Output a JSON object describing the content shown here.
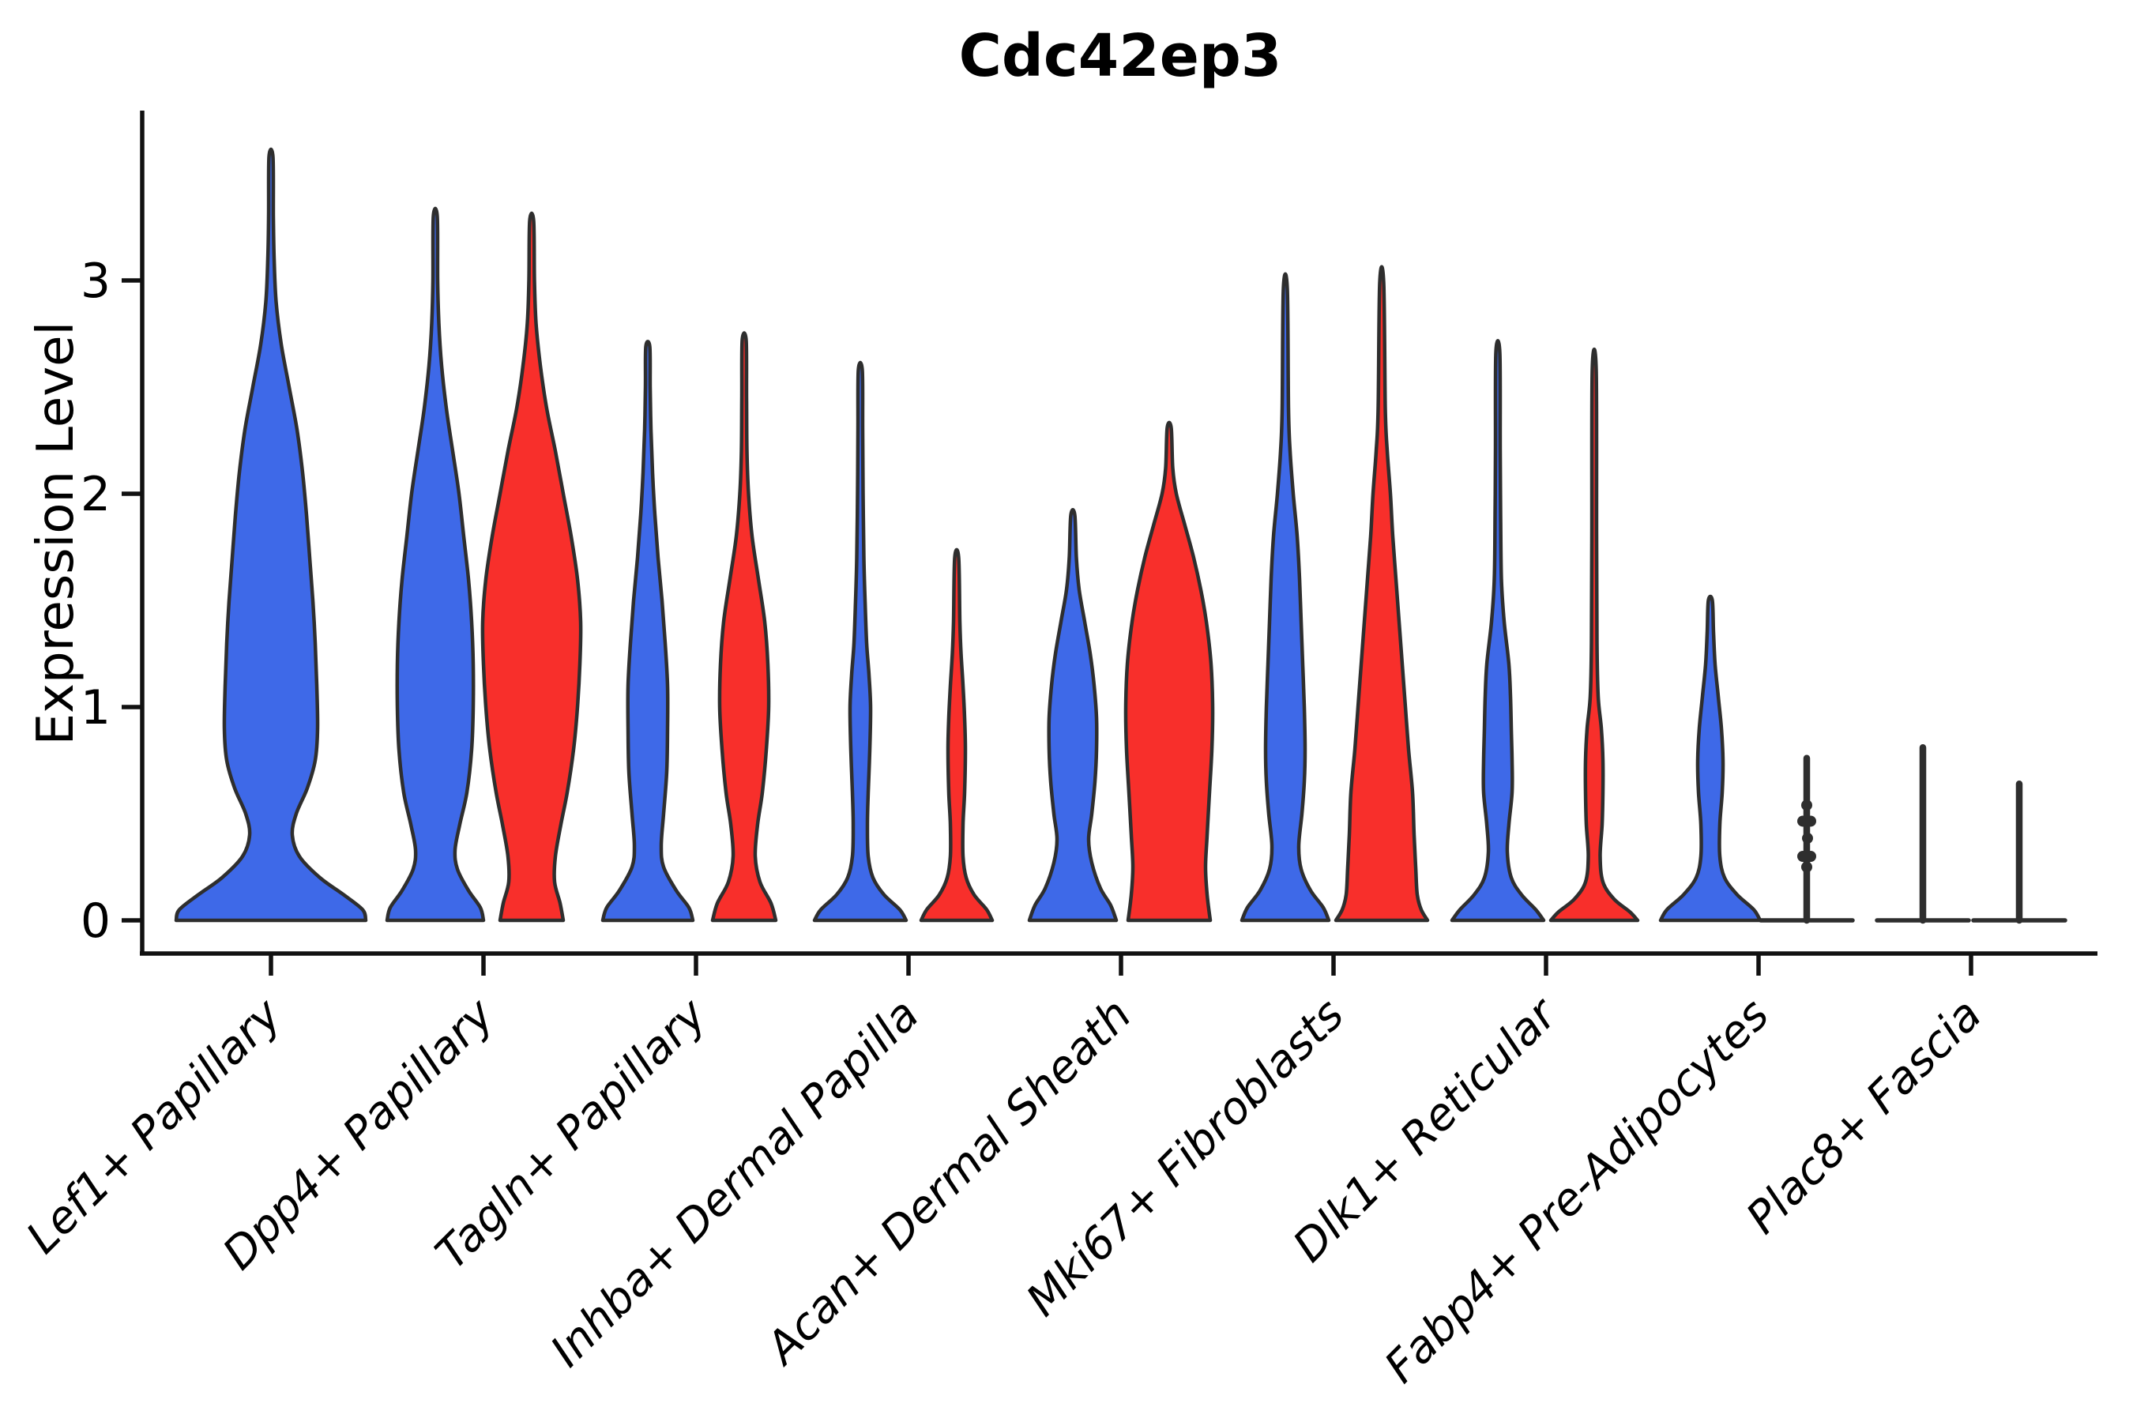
{
  "chart_data": {
    "type": "violin",
    "title": "Cdc42ep3",
    "ylabel": "Expression Level",
    "xlabel": "",
    "yticks": [
      0,
      1,
      2,
      3
    ],
    "ylim": [
      0,
      3.77
    ],
    "grid": false,
    "legend": "none",
    "background": "#ffffff",
    "colors": {
      "blue": "#3E69E8",
      "red": "#F82F2B",
      "outline": "#2E2E2E",
      "axis": "#111111"
    },
    "categories": [
      "Lef1+ Papillary",
      "Dpp4+ Papillary",
      "Tagln+ Papillary",
      "Inhba+ Dermal Papilla",
      "Acan+ Dermal Sheath",
      "Mki67+ Fibroblasts",
      "Dlk1+ Reticular",
      "Fabp4+ Pre-Adipocytes",
      "Plac8+ Fascia"
    ],
    "violins": [
      {
        "category": "Lef1+ Papillary",
        "group": "blue",
        "side": "center",
        "style": "density",
        "max": 3.58,
        "profile": [
          [
            0,
            120
          ],
          [
            0.05,
            116
          ],
          [
            0.12,
            92
          ],
          [
            0.2,
            62
          ],
          [
            0.3,
            36
          ],
          [
            0.4,
            27
          ],
          [
            0.5,
            32
          ],
          [
            0.62,
            46
          ],
          [
            0.75,
            56
          ],
          [
            0.9,
            59
          ],
          [
            1.1,
            58
          ],
          [
            1.3,
            56
          ],
          [
            1.5,
            53
          ],
          [
            1.7,
            49
          ],
          [
            1.9,
            45
          ],
          [
            2.1,
            40
          ],
          [
            2.3,
            33
          ],
          [
            2.5,
            23
          ],
          [
            2.7,
            13
          ],
          [
            2.9,
            6.5
          ],
          [
            3.1,
            4
          ],
          [
            3.3,
            3
          ],
          [
            3.58,
            2.5
          ]
        ]
      },
      {
        "category": "Dpp4+ Papillary",
        "group": "blue",
        "side": "left",
        "style": "density",
        "max": 3.3,
        "profile": [
          [
            0,
            61
          ],
          [
            0.06,
            57
          ],
          [
            0.14,
            42
          ],
          [
            0.24,
            28
          ],
          [
            0.33,
            25
          ],
          [
            0.45,
            31
          ],
          [
            0.6,
            40
          ],
          [
            0.8,
            46
          ],
          [
            1.0,
            48
          ],
          [
            1.2,
            48
          ],
          [
            1.4,
            46
          ],
          [
            1.6,
            42
          ],
          [
            1.8,
            36
          ],
          [
            2.0,
            30
          ],
          [
            2.2,
            22
          ],
          [
            2.4,
            14
          ],
          [
            2.6,
            8
          ],
          [
            2.8,
            4.5
          ],
          [
            3.0,
            3
          ],
          [
            3.3,
            2.5
          ]
        ]
      },
      {
        "category": "Dpp4+ Papillary",
        "group": "red",
        "side": "right",
        "style": "density",
        "max": 3.28,
        "profile": [
          [
            0,
            40
          ],
          [
            0.08,
            36
          ],
          [
            0.18,
            29
          ],
          [
            0.3,
            30
          ],
          [
            0.45,
            37
          ],
          [
            0.6,
            45
          ],
          [
            0.8,
            53
          ],
          [
            1.0,
            58
          ],
          [
            1.2,
            61
          ],
          [
            1.4,
            62
          ],
          [
            1.6,
            58
          ],
          [
            1.8,
            50
          ],
          [
            2.0,
            40
          ],
          [
            2.2,
            30
          ],
          [
            2.4,
            19
          ],
          [
            2.6,
            11
          ],
          [
            2.8,
            5.5
          ],
          [
            3.0,
            3.5
          ],
          [
            3.28,
            2.5
          ]
        ]
      },
      {
        "category": "Tagln+ Papillary",
        "group": "blue",
        "side": "left",
        "style": "density",
        "max": 2.69,
        "profile": [
          [
            0,
            57
          ],
          [
            0.06,
            52
          ],
          [
            0.14,
            36
          ],
          [
            0.25,
            20
          ],
          [
            0.35,
            17
          ],
          [
            0.5,
            20
          ],
          [
            0.7,
            24
          ],
          [
            0.9,
            25
          ],
          [
            1.1,
            25
          ],
          [
            1.3,
            22
          ],
          [
            1.5,
            18
          ],
          [
            1.7,
            13
          ],
          [
            1.9,
            9
          ],
          [
            2.1,
            6
          ],
          [
            2.3,
            4
          ],
          [
            2.5,
            3
          ],
          [
            2.69,
            2.5
          ]
        ]
      },
      {
        "category": "Tagln+ Papillary",
        "group": "red",
        "side": "right",
        "style": "density",
        "max": 2.72,
        "profile": [
          [
            0,
            40
          ],
          [
            0.08,
            34
          ],
          [
            0.18,
            20
          ],
          [
            0.3,
            14
          ],
          [
            0.45,
            17
          ],
          [
            0.6,
            23
          ],
          [
            0.8,
            28
          ],
          [
            1.0,
            31
          ],
          [
            1.2,
            30
          ],
          [
            1.4,
            26
          ],
          [
            1.6,
            18
          ],
          [
            1.8,
            10
          ],
          [
            2.0,
            5.5
          ],
          [
            2.2,
            3.5
          ],
          [
            2.45,
            3
          ],
          [
            2.72,
            2.5
          ]
        ]
      },
      {
        "category": "Inhba+ Dermal Papilla",
        "group": "blue",
        "side": "left",
        "style": "density",
        "max": 2.58,
        "profile": [
          [
            0,
            58
          ],
          [
            0.05,
            50
          ],
          [
            0.12,
            30
          ],
          [
            0.2,
            16
          ],
          [
            0.3,
            10
          ],
          [
            0.45,
            9
          ],
          [
            0.6,
            10
          ],
          [
            0.8,
            12
          ],
          [
            1.0,
            13
          ],
          [
            1.15,
            11
          ],
          [
            1.3,
            8
          ],
          [
            1.5,
            6
          ],
          [
            1.7,
            4.5
          ],
          [
            2.0,
            3.5
          ],
          [
            2.3,
            3
          ],
          [
            2.58,
            2.5
          ]
        ]
      },
      {
        "category": "Inhba+ Dermal Papilla",
        "group": "red",
        "side": "right",
        "style": "density",
        "max": 1.7,
        "profile": [
          [
            0,
            45
          ],
          [
            0.05,
            38
          ],
          [
            0.12,
            22
          ],
          [
            0.2,
            12
          ],
          [
            0.3,
            8
          ],
          [
            0.45,
            8
          ],
          [
            0.6,
            10
          ],
          [
            0.8,
            11
          ],
          [
            0.95,
            10
          ],
          [
            1.1,
            8
          ],
          [
            1.25,
            5.5
          ],
          [
            1.4,
            4
          ],
          [
            1.7,
            2.5
          ]
        ]
      },
      {
        "category": "Acan+ Dermal Sheath",
        "group": "blue",
        "side": "left",
        "style": "density",
        "max": 1.9,
        "profile": [
          [
            0,
            55
          ],
          [
            0.07,
            48
          ],
          [
            0.15,
            35
          ],
          [
            0.27,
            24
          ],
          [
            0.38,
            20
          ],
          [
            0.5,
            24
          ],
          [
            0.65,
            28
          ],
          [
            0.8,
            30
          ],
          [
            0.95,
            30
          ],
          [
            1.1,
            27
          ],
          [
            1.25,
            22
          ],
          [
            1.4,
            15
          ],
          [
            1.55,
            8
          ],
          [
            1.7,
            4.5
          ],
          [
            1.9,
            2.5
          ]
        ]
      },
      {
        "category": "Acan+ Dermal Sheath",
        "group": "red",
        "side": "right",
        "style": "density",
        "max": 2.31,
        "profile": [
          [
            0,
            52
          ],
          [
            0.12,
            48
          ],
          [
            0.25,
            46
          ],
          [
            0.4,
            48
          ],
          [
            0.6,
            51
          ],
          [
            0.8,
            54
          ],
          [
            1.0,
            55
          ],
          [
            1.2,
            53
          ],
          [
            1.4,
            47
          ],
          [
            1.55,
            40
          ],
          [
            1.7,
            31
          ],
          [
            1.85,
            20
          ],
          [
            2.0,
            9
          ],
          [
            2.12,
            4.5
          ],
          [
            2.31,
            2.5
          ]
        ]
      },
      {
        "category": "Mki67+ Fibroblasts",
        "group": "blue",
        "side": "left",
        "style": "density",
        "max": 2.96,
        "profile": [
          [
            0,
            55
          ],
          [
            0.06,
            48
          ],
          [
            0.14,
            32
          ],
          [
            0.24,
            20
          ],
          [
            0.35,
            17
          ],
          [
            0.5,
            21
          ],
          [
            0.65,
            24
          ],
          [
            0.8,
            25
          ],
          [
            1.0,
            24
          ],
          [
            1.2,
            22
          ],
          [
            1.4,
            20
          ],
          [
            1.6,
            18
          ],
          [
            1.8,
            15
          ],
          [
            2.0,
            10
          ],
          [
            2.2,
            6
          ],
          [
            2.4,
            4
          ],
          [
            2.96,
            2.5
          ]
        ]
      },
      {
        "category": "Mki67+ Fibroblasts",
        "group": "red",
        "side": "right",
        "style": "density",
        "max": 2.99,
        "profile": [
          [
            0,
            58
          ],
          [
            0.05,
            50
          ],
          [
            0.12,
            45
          ],
          [
            0.25,
            43
          ],
          [
            0.4,
            41
          ],
          [
            0.6,
            39
          ],
          [
            0.8,
            34
          ],
          [
            1.0,
            30
          ],
          [
            1.2,
            26
          ],
          [
            1.4,
            22
          ],
          [
            1.6,
            18
          ],
          [
            1.8,
            14
          ],
          [
            2.0,
            11
          ],
          [
            2.2,
            7
          ],
          [
            2.4,
            4.5
          ],
          [
            2.99,
            2.5
          ]
        ]
      },
      {
        "category": "Dlk1+ Reticular",
        "group": "blue",
        "side": "left",
        "style": "density",
        "max": 2.66,
        "profile": [
          [
            0,
            58
          ],
          [
            0.05,
            48
          ],
          [
            0.12,
            30
          ],
          [
            0.2,
            17
          ],
          [
            0.32,
            12
          ],
          [
            0.45,
            14
          ],
          [
            0.6,
            18
          ],
          [
            0.75,
            18
          ],
          [
            0.9,
            17
          ],
          [
            1.05,
            16
          ],
          [
            1.2,
            14
          ],
          [
            1.4,
            8
          ],
          [
            1.6,
            4.5
          ],
          [
            1.9,
            3.5
          ],
          [
            2.2,
            3
          ],
          [
            2.66,
            2.5
          ]
        ]
      },
      {
        "category": "Dlk1+ Reticular",
        "group": "red",
        "side": "right",
        "style": "density",
        "max": 2.58,
        "profile": [
          [
            0,
            55
          ],
          [
            0.04,
            45
          ],
          [
            0.1,
            25
          ],
          [
            0.18,
            11
          ],
          [
            0.3,
            7.5
          ],
          [
            0.45,
            10
          ],
          [
            0.6,
            11
          ],
          [
            0.75,
            11
          ],
          [
            0.9,
            9
          ],
          [
            1.05,
            5
          ],
          [
            1.3,
            3.5
          ],
          [
            1.8,
            3
          ],
          [
            2.58,
            2.5
          ]
        ]
      },
      {
        "category": "Fabp4+ Pre-Adipocytes",
        "group": "blue",
        "side": "left",
        "style": "density",
        "max": 1.5,
        "profile": [
          [
            0,
            63
          ],
          [
            0.05,
            55
          ],
          [
            0.12,
            34
          ],
          [
            0.2,
            18
          ],
          [
            0.3,
            12
          ],
          [
            0.45,
            12
          ],
          [
            0.6,
            15
          ],
          [
            0.75,
            16
          ],
          [
            0.9,
            14
          ],
          [
            1.05,
            10
          ],
          [
            1.2,
            6
          ],
          [
            1.35,
            4
          ],
          [
            1.5,
            2.5
          ]
        ]
      },
      {
        "category": "Fabp4+ Pre-Adipocytes",
        "group": "red",
        "side": "right",
        "style": "line",
        "max": 0.76,
        "baseline_halfwidth": 58,
        "dots": [
          [
            0.54,
            0
          ],
          [
            0.465,
            -5
          ],
          [
            0.465,
            5
          ],
          [
            0.385,
            1
          ],
          [
            0.3,
            -5
          ],
          [
            0.3,
            5
          ],
          [
            0.25,
            0
          ]
        ]
      },
      {
        "category": "Plac8+ Fascia",
        "group": "blue",
        "side": "left",
        "style": "line",
        "max": 0.81,
        "baseline_halfwidth": 58
      },
      {
        "category": "Plac8+ Fascia",
        "group": "red",
        "side": "right",
        "style": "line",
        "max": 0.64,
        "baseline_halfwidth": 58
      }
    ]
  }
}
